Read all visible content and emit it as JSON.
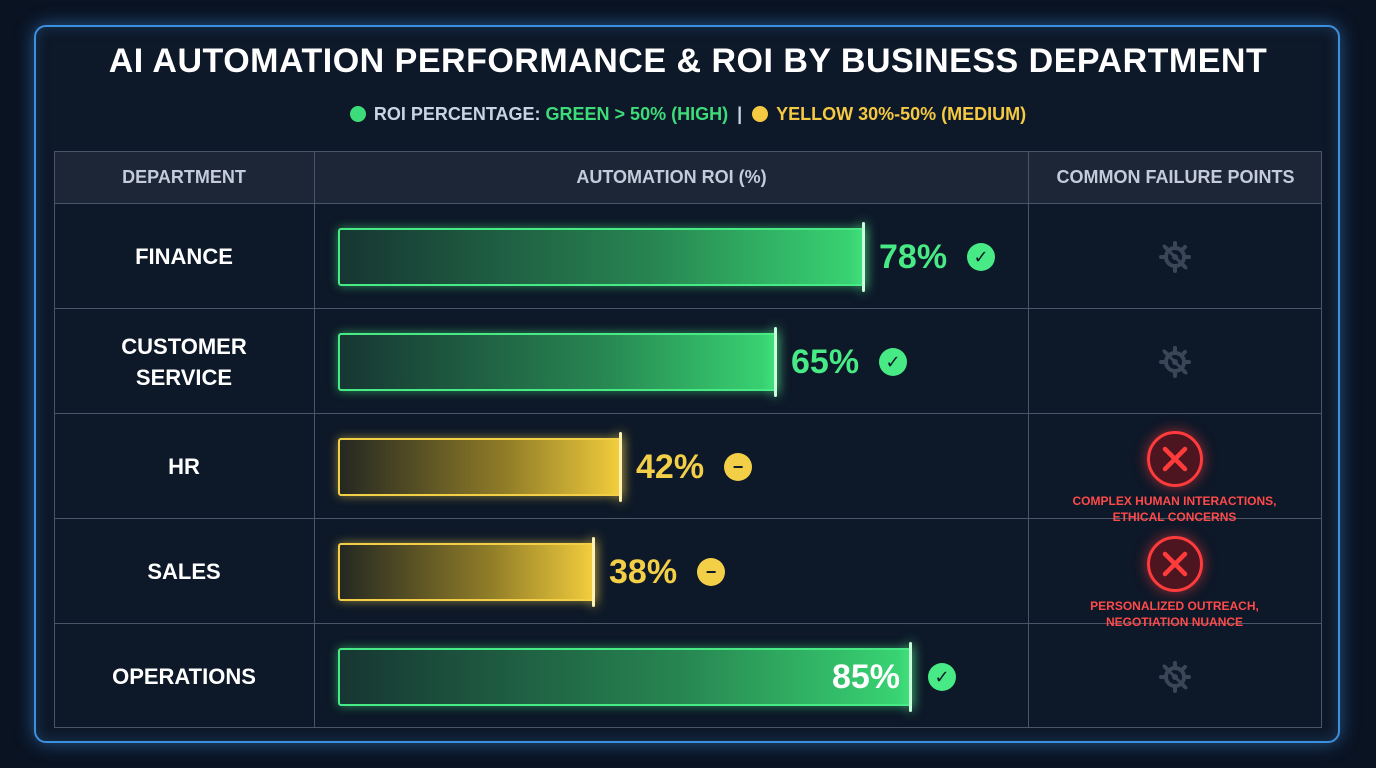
{
  "title": "AI AUTOMATION PERFORMANCE & ROI BY BUSINESS DEPARTMENT",
  "legend": {
    "prefix": "ROI PERCENTAGE:",
    "green": "GREEN > 50% (HIGH)",
    "separator": "|",
    "yellow": "YELLOW 30%-50% (MEDIUM)"
  },
  "columns": {
    "department": "DEPARTMENT",
    "roi": "AUTOMATION ROI (%)",
    "failures": "COMMON FAILURE POINTS"
  },
  "colors": {
    "high": "#47ea84",
    "medium": "#f3cf48",
    "failure": "#ff3b3b"
  },
  "chart_data": {
    "type": "bar",
    "title": "AI AUTOMATION PERFORMANCE & ROI BY BUSINESS DEPARTMENT",
    "xlabel": "AUTOMATION ROI (%)",
    "ylabel": "DEPARTMENT",
    "orientation": "horizontal",
    "xlim": [
      0,
      100
    ],
    "categories": [
      "FINANCE",
      "CUSTOMER SERVICE",
      "HR",
      "SALES",
      "OPERATIONS"
    ],
    "values": [
      78,
      65,
      42,
      38,
      85
    ],
    "value_labels": [
      "78%",
      "65%",
      "42%",
      "38%",
      "85%"
    ],
    "levels": [
      "high",
      "high",
      "medium",
      "medium",
      "high"
    ],
    "status_icons": [
      "check-icon",
      "check-icon",
      "minus-icon",
      "minus-icon",
      "check-icon"
    ],
    "failure_points": [
      "",
      "",
      "COMPLEX HUMAN INTERACTIONS, ETHICAL CONCERNS",
      "PERSONALIZED OUTREACH, NEGOTIATION NUANCE",
      ""
    ]
  },
  "rows": [
    {
      "dept_line1": "FINANCE",
      "dept_line2": "",
      "value_label": "78%",
      "failure_line1": "",
      "failure_line2": ""
    },
    {
      "dept_line1": "CUSTOMER",
      "dept_line2": "SERVICE",
      "value_label": "65%",
      "failure_line1": "",
      "failure_line2": ""
    },
    {
      "dept_line1": "HR",
      "dept_line2": "",
      "value_label": "42%",
      "failure_line1": "COMPLEX HUMAN INTERACTIONS,",
      "failure_line2": "ETHICAL CONCERNS"
    },
    {
      "dept_line1": "SALES",
      "dept_line2": "",
      "value_label": "38%",
      "failure_line1": "PERSONALIZED OUTREACH,",
      "failure_line2": "NEGOTIATION NUANCE"
    },
    {
      "dept_line1": "OPERATIONS",
      "dept_line2": "",
      "value_label": "85%",
      "failure_line1": "",
      "failure_line2": ""
    }
  ]
}
